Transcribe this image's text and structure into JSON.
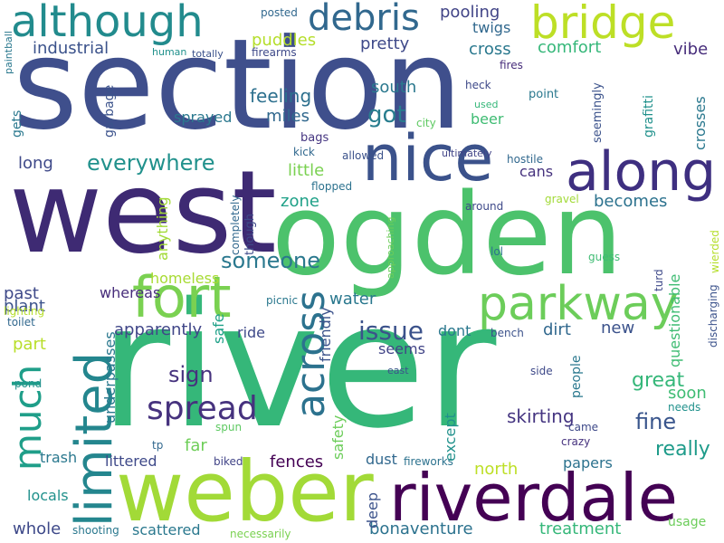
{
  "words": [
    {
      "text": "section",
      "color": "#3f4f8c",
      "vertical": false
    },
    {
      "text": "river",
      "color": "#35b779",
      "vertical": false
    },
    {
      "text": "west",
      "color": "#3e2a73",
      "vertical": false
    },
    {
      "text": "ogden",
      "color": "#4cc26c",
      "vertical": false
    },
    {
      "text": "weber",
      "color": "#a2da37",
      "vertical": false
    },
    {
      "text": "riverdale",
      "color": "#440154",
      "vertical": false
    },
    {
      "text": "bridge",
      "color": "#bddf26",
      "vertical": false
    },
    {
      "text": "although",
      "color": "#228b8d",
      "vertical": false
    },
    {
      "text": "along",
      "color": "#3e2f80",
      "vertical": false
    },
    {
      "text": "nice",
      "color": "#3b528b",
      "vertical": false
    },
    {
      "text": "limited",
      "color": "#24868e",
      "vertical": true
    },
    {
      "text": "much",
      "color": "#1f9e89",
      "vertical": true
    },
    {
      "text": "fort",
      "color": "#7ad151",
      "vertical": false
    },
    {
      "text": "parkway",
      "color": "#6ccd5a",
      "vertical": false
    },
    {
      "text": "debris",
      "color": "#31688e",
      "vertical": false
    },
    {
      "text": "across",
      "color": "#2c728e",
      "vertical": true
    },
    {
      "text": "spread",
      "color": "#46327e",
      "vertical": false
    },
    {
      "text": "everywhere",
      "color": "#21918c",
      "vertical": false
    },
    {
      "text": "issue",
      "color": "#3b528b",
      "vertical": false
    },
    {
      "text": "someone",
      "color": "#2a788e",
      "vertical": false
    },
    {
      "text": "got",
      "color": "#287d8e",
      "vertical": false
    },
    {
      "text": "industrial",
      "color": "#3b528b",
      "vertical": false
    },
    {
      "text": "pooling",
      "color": "#414487",
      "vertical": false
    },
    {
      "text": "twigs",
      "color": "#31688e",
      "vertical": false
    },
    {
      "text": "cross",
      "color": "#2a788e",
      "vertical": false
    },
    {
      "text": "comfort",
      "color": "#35b779",
      "vertical": false
    },
    {
      "text": "vibe",
      "color": "#472d7b",
      "vertical": false
    },
    {
      "text": "puddles",
      "color": "#b5de2b",
      "vertical": false
    },
    {
      "text": "pretty",
      "color": "#3e4989",
      "vertical": false
    },
    {
      "text": "feeling",
      "color": "#2d708e",
      "vertical": false
    },
    {
      "text": "miles",
      "color": "#31688e",
      "vertical": false
    },
    {
      "text": "south",
      "color": "#2a788e",
      "vertical": false
    },
    {
      "text": "sprayed",
      "color": "#2a788e",
      "vertical": false
    },
    {
      "text": "beer",
      "color": "#3fbc73",
      "vertical": false
    },
    {
      "text": "long",
      "color": "#3e4989",
      "vertical": false
    },
    {
      "text": "little",
      "color": "#7ad151",
      "vertical": false
    },
    {
      "text": "cans",
      "color": "#46327e",
      "vertical": false
    },
    {
      "text": "zone",
      "color": "#1fa188",
      "vertical": false
    },
    {
      "text": "becomes",
      "color": "#2c728e",
      "vertical": false
    },
    {
      "text": "past",
      "color": "#3e4989",
      "vertical": false
    },
    {
      "text": "plant",
      "color": "#3b528b",
      "vertical": false
    },
    {
      "text": "whereas",
      "color": "#472d7b",
      "vertical": false
    },
    {
      "text": "homeless",
      "color": "#a8db34",
      "vertical": false
    },
    {
      "text": "water",
      "color": "#2a788e",
      "vertical": false
    },
    {
      "text": "dirt",
      "color": "#31688e",
      "vertical": false
    },
    {
      "text": "new",
      "color": "#3b528b",
      "vertical": false
    },
    {
      "text": "apparently",
      "color": "#404688",
      "vertical": false
    },
    {
      "text": "ride",
      "color": "#3e4989",
      "vertical": false
    },
    {
      "text": "seems",
      "color": "#414487",
      "vertical": false
    },
    {
      "text": "dont",
      "color": "#2a788e",
      "vertical": false
    },
    {
      "text": "part",
      "color": "#b8de29",
      "vertical": false
    },
    {
      "text": "sign",
      "color": "#46327e",
      "vertical": false
    },
    {
      "text": "fine",
      "color": "#39558c",
      "vertical": false
    },
    {
      "text": "great",
      "color": "#35b779",
      "vertical": false
    },
    {
      "text": "soon",
      "color": "#3fbc73",
      "vertical": false
    },
    {
      "text": "skirting",
      "color": "#453581",
      "vertical": false
    },
    {
      "text": "far",
      "color": "#6ece58",
      "vertical": false
    },
    {
      "text": "really",
      "color": "#1e9b8a",
      "vertical": false
    },
    {
      "text": "fences",
      "color": "#440154",
      "vertical": false
    },
    {
      "text": "littered",
      "color": "#3e4989",
      "vertical": false
    },
    {
      "text": "trash",
      "color": "#2a788e",
      "vertical": false
    },
    {
      "text": "locals",
      "color": "#21918c",
      "vertical": false
    },
    {
      "text": "dust",
      "color": "#31688e",
      "vertical": false
    },
    {
      "text": "north",
      "color": "#bddf26",
      "vertical": false
    },
    {
      "text": "papers",
      "color": "#2c728e",
      "vertical": false
    },
    {
      "text": "whole",
      "color": "#3e4989",
      "vertical": false
    },
    {
      "text": "scattered",
      "color": "#2a788e",
      "vertical": false
    },
    {
      "text": "bonaventure",
      "color": "#2c728e",
      "vertical": false
    },
    {
      "text": "treatment",
      "color": "#35b779",
      "vertical": false
    },
    {
      "text": "usage",
      "color": "#6ccd5a",
      "vertical": false
    },
    {
      "text": "posted",
      "color": "#31688e",
      "vertical": false
    },
    {
      "text": "firearms",
      "color": "#3e4989",
      "vertical": false
    },
    {
      "text": "human",
      "color": "#21918c",
      "vertical": false
    },
    {
      "text": "totally",
      "color": "#3b528b",
      "vertical": false
    },
    {
      "text": "fires",
      "color": "#472d7b",
      "vertical": false
    },
    {
      "text": "heck",
      "color": "#3e4989",
      "vertical": false
    },
    {
      "text": "point",
      "color": "#2a788e",
      "vertical": false
    },
    {
      "text": "used",
      "color": "#35b779",
      "vertical": false
    },
    {
      "text": "city",
      "color": "#5ec962",
      "vertical": false
    },
    {
      "text": "bags",
      "color": "#453581",
      "vertical": false
    },
    {
      "text": "kick",
      "color": "#31688e",
      "vertical": false
    },
    {
      "text": "allowed",
      "color": "#3b528b",
      "vertical": false
    },
    {
      "text": "ultimately",
      "color": "#414487",
      "vertical": false
    },
    {
      "text": "hostile",
      "color": "#31688e",
      "vertical": false
    },
    {
      "text": "flopped",
      "color": "#2c728e",
      "vertical": false
    },
    {
      "text": "gravel",
      "color": "#a2da37",
      "vertical": false
    },
    {
      "text": "around",
      "color": "#3e4989",
      "vertical": false
    },
    {
      "text": "picnic",
      "color": "#2a788e",
      "vertical": false
    },
    {
      "text": "lol",
      "color": "#2c728e",
      "vertical": false
    },
    {
      "text": "guess",
      "color": "#3fbc73",
      "vertical": false
    },
    {
      "text": "lighting",
      "color": "#b5de2b",
      "vertical": false
    },
    {
      "text": "toilet",
      "color": "#31688e",
      "vertical": false
    },
    {
      "text": "pond",
      "color": "#21918c",
      "vertical": false
    },
    {
      "text": "bench",
      "color": "#3b528b",
      "vertical": false
    },
    {
      "text": "side",
      "color": "#3e4989",
      "vertical": false
    },
    {
      "text": "east",
      "color": "#3b528b",
      "vertical": false
    },
    {
      "text": "spun",
      "color": "#5ec962",
      "vertical": false
    },
    {
      "text": "tp",
      "color": "#31688e",
      "vertical": false
    },
    {
      "text": "biked",
      "color": "#414487",
      "vertical": false
    },
    {
      "text": "fireworks",
      "color": "#2c728e",
      "vertical": false
    },
    {
      "text": "came",
      "color": "#3e4989",
      "vertical": false
    },
    {
      "text": "crazy",
      "color": "#46327e",
      "vertical": false
    },
    {
      "text": "needs",
      "color": "#21918c",
      "vertical": false
    },
    {
      "text": "shooting",
      "color": "#2a788e",
      "vertical": false
    },
    {
      "text": "necessarily",
      "color": "#7ad151",
      "vertical": false
    },
    {
      "text": "paintball",
      "color": "#2a788e",
      "vertical": true
    },
    {
      "text": "gets",
      "color": "#2a788e",
      "vertical": true
    },
    {
      "text": "garbage",
      "color": "#3b528b",
      "vertical": true
    },
    {
      "text": "grafitti",
      "color": "#21918c",
      "vertical": true
    },
    {
      "text": "seemingly",
      "color": "#3b528b",
      "vertical": true
    },
    {
      "text": "crosses",
      "color": "#2a788e",
      "vertical": true
    },
    {
      "text": "anything",
      "color": "#a2da37",
      "vertical": true
    },
    {
      "text": "completely",
      "color": "#31688e",
      "vertical": true
    },
    {
      "text": "though",
      "color": "#3e4989",
      "vertical": true
    },
    {
      "text": "approaching",
      "color": "#6ccd5a",
      "vertical": true
    },
    {
      "text": "wierded",
      "color": "#b5de2b",
      "vertical": true
    },
    {
      "text": "discharging",
      "color": "#3b528b",
      "vertical": true
    },
    {
      "text": "turd",
      "color": "#3e4989",
      "vertical": true
    },
    {
      "text": "safe",
      "color": "#1fa188",
      "vertical": true
    },
    {
      "text": "friendly",
      "color": "#3b528b",
      "vertical": true
    },
    {
      "text": "underpasses",
      "color": "#2a788e",
      "vertical": true
    },
    {
      "text": "safety",
      "color": "#6ccd5a",
      "vertical": true
    },
    {
      "text": "except",
      "color": "#21918c",
      "vertical": true
    },
    {
      "text": "deep",
      "color": "#3b528b",
      "vertical": true
    },
    {
      "text": "questionable",
      "color": "#3fbc73",
      "vertical": true
    },
    {
      "text": "people",
      "color": "#2a788e",
      "vertical": true
    }
  ]
}
